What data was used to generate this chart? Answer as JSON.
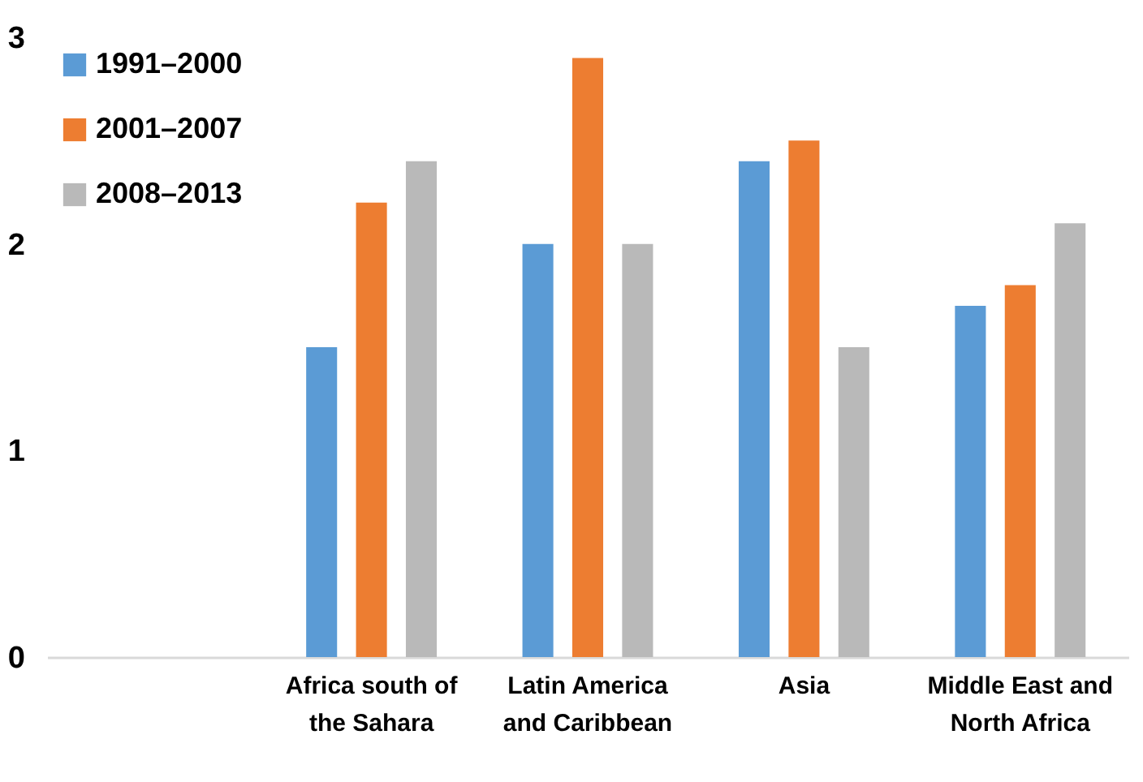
{
  "chart_data": {
    "type": "bar",
    "categories": [
      null,
      "Africa south of the Sahara",
      "Latin America and Caribbean",
      "Asia",
      "Middle East and North Africa"
    ],
    "series": [
      {
        "name": "1991–2000",
        "color": "#5b9bd5",
        "values": [
          null,
          1.5,
          2.0,
          2.4,
          1.7
        ]
      },
      {
        "name": "2001–2007",
        "color": "#ed7d31",
        "values": [
          null,
          2.2,
          2.9,
          2.5,
          1.8
        ]
      },
      {
        "name": "2008–2013",
        "color": "#b9b9b9",
        "values": [
          null,
          2.4,
          2.0,
          1.5,
          2.1
        ]
      }
    ],
    "ylim": [
      0,
      3
    ],
    "yticks": [
      0,
      1,
      2,
      3
    ],
    "grid": false,
    "legend": "top left"
  }
}
